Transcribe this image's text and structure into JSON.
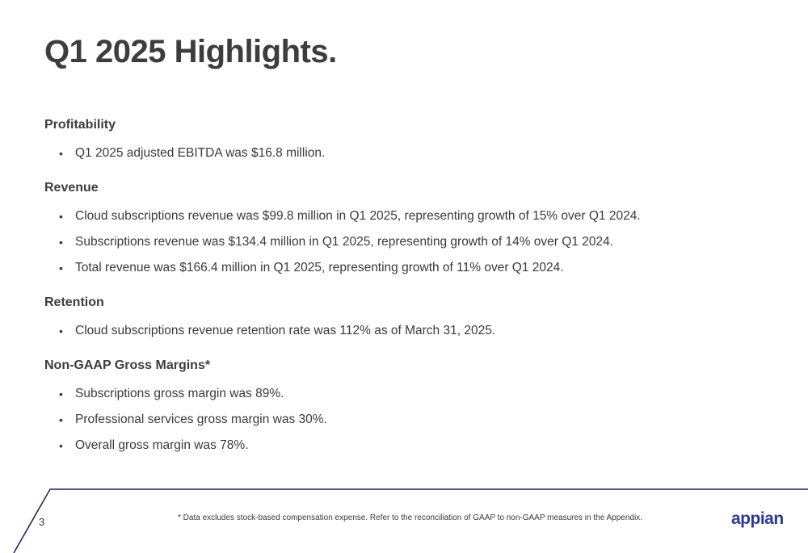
{
  "slide": {
    "title": "Q1 2025 Highlights.",
    "sections": [
      {
        "heading": "Profitability",
        "bullets": [
          "Q1 2025 adjusted EBITDA was $16.8 million."
        ]
      },
      {
        "heading": "Revenue",
        "bullets": [
          "Cloud subscriptions revenue was $99.8 million in Q1 2025, representing growth of 15% over Q1 2024.",
          "Subscriptions revenue was $134.4 million in Q1 2025, representing growth of 14% over Q1 2024.",
          "Total revenue was $166.4 million in Q1 2025, representing growth of 11% over Q1 2024."
        ]
      },
      {
        "heading": "Retention",
        "bullets": [
          "Cloud subscriptions revenue retention rate was 112% as of March 31, 2025."
        ]
      },
      {
        "heading": "Non-GAAP Gross Margins*",
        "bullets": [
          "Subscriptions gross margin was 89%.",
          "Professional services gross margin was 30%.",
          "Overall gross margin was 78%."
        ]
      }
    ]
  },
  "footer": {
    "page_number": "3",
    "footnote": "* Data excludes stock-based compensation expense. Refer to the reconciliation of GAAP to non-GAAP measures in the Appendix.",
    "logo_text": "appian"
  },
  "colors": {
    "text": "#3a3a3d",
    "footer_line": "#1f2a5c",
    "logo": "#2b3a8f"
  }
}
